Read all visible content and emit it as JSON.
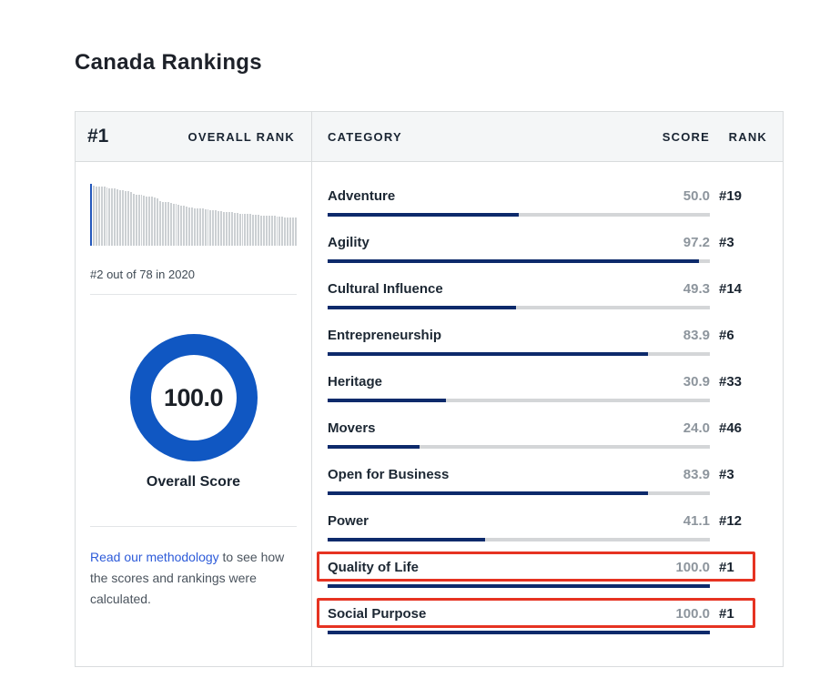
{
  "page": {
    "title": "Canada Rankings"
  },
  "overall": {
    "rank_value": "#1",
    "rank_label": "OVERALL RANK",
    "history_caption": "#2 out of 78 in 2020",
    "score": "100.0",
    "score_label": "Overall Score",
    "methodology": {
      "link_text": "Read our methodology",
      "rest_text": " to see how the scores and rankings were calculated."
    }
  },
  "table": {
    "headers": {
      "category": "CATEGORY",
      "score": "SCORE",
      "rank": "RANK"
    },
    "rows": [
      {
        "category": "Adventure",
        "score": "50.0",
        "rank": "#19",
        "percent": 50.0,
        "highlighted": false
      },
      {
        "category": "Agility",
        "score": "97.2",
        "rank": "#3",
        "percent": 97.2,
        "highlighted": false
      },
      {
        "category": "Cultural Influence",
        "score": "49.3",
        "rank": "#14",
        "percent": 49.3,
        "highlighted": false
      },
      {
        "category": "Entrepreneurship",
        "score": "83.9",
        "rank": "#6",
        "percent": 83.9,
        "highlighted": false
      },
      {
        "category": "Heritage",
        "score": "30.9",
        "rank": "#33",
        "percent": 30.9,
        "highlighted": false
      },
      {
        "category": "Movers",
        "score": "24.0",
        "rank": "#46",
        "percent": 24.0,
        "highlighted": false
      },
      {
        "category": "Open for Business",
        "score": "83.9",
        "rank": "#3",
        "percent": 83.9,
        "highlighted": false
      },
      {
        "category": "Power",
        "score": "41.1",
        "rank": "#12",
        "percent": 41.1,
        "highlighted": false
      },
      {
        "category": "Quality of Life",
        "score": "100.0",
        "rank": "#1",
        "percent": 100.0,
        "highlighted": true
      },
      {
        "category": "Social Purpose",
        "score": "100.0",
        "rank": "#1",
        "percent": 100.0,
        "highlighted": true
      }
    ]
  },
  "chart_data": [
    {
      "type": "bar",
      "name": "rank-history-sparkline",
      "title": "",
      "caption": "#2 out of 78 in 2020",
      "description": "78 thin bars of decreasing height, one per ranked country; first bar highlighted blue",
      "highlight_index": 0,
      "ylim": [
        0,
        100
      ],
      "grid": false,
      "values": [
        100,
        97,
        96,
        96,
        95,
        95,
        94,
        93,
        93,
        92,
        91,
        90,
        89,
        88,
        88,
        87,
        84,
        83,
        82,
        82,
        81,
        80,
        79,
        79,
        78,
        77,
        72,
        71,
        70,
        70,
        69,
        68,
        67,
        66,
        65,
        64,
        63,
        62,
        62,
        61,
        61,
        60,
        60,
        59,
        59,
        58,
        57,
        57,
        56,
        56,
        55,
        55,
        54,
        54,
        53,
        53,
        52,
        52,
        51,
        51,
        51,
        50,
        50,
        50,
        49,
        49,
        49,
        48,
        48,
        48,
        47,
        47,
        47,
        46,
        46,
        46,
        45,
        45
      ]
    },
    {
      "type": "pie",
      "name": "overall-score-donut",
      "value": 100.0,
      "max": 100,
      "center_text": "100.0",
      "label": "Overall Score"
    },
    {
      "type": "bar",
      "name": "category-score-bars",
      "categories": [
        "Adventure",
        "Agility",
        "Cultural Influence",
        "Entrepreneurship",
        "Heritage",
        "Movers",
        "Open for Business",
        "Power",
        "Quality of Life",
        "Social Purpose"
      ],
      "values": [
        50.0,
        97.2,
        49.3,
        83.9,
        30.9,
        24.0,
        83.9,
        41.1,
        100.0,
        100.0
      ],
      "xlim": [
        0,
        100
      ],
      "ranks": [
        "#19",
        "#3",
        "#14",
        "#6",
        "#33",
        "#46",
        "#3",
        "#12",
        "#1",
        "#1"
      ]
    }
  ],
  "colors": {
    "text_dark": "#1c2733",
    "text_gray": "#4b545e",
    "score_gray": "#8d959d",
    "navy_bar": "#0d2a6b",
    "bar_track": "#d4d6d8",
    "donut_blue": "#1057c2",
    "spark_blue": "#2458bc",
    "spark_gray": "#ccd0d3",
    "link_blue": "#2d5bd9",
    "highlight_red": "#e63322"
  }
}
